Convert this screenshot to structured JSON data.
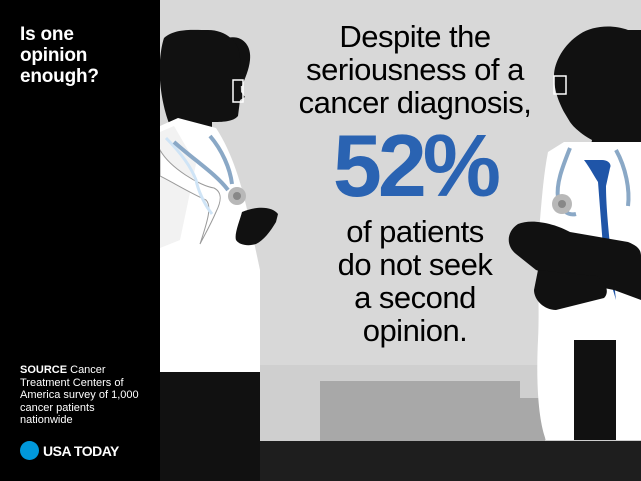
{
  "sidebar": {
    "headline": "Is one\nopinion\nenough?",
    "source_label": "SOURCE",
    "source_text": " Cancer Treatment Centers of America survey of 1,000 cancer patients nationwide",
    "brand_name": "USA TODAY",
    "brand_icon": "usa-today-dot-logo"
  },
  "main": {
    "lead": "Despite the\nseriousness of a\ncancer diagnosis,",
    "stat": "52%",
    "tail": "of patients\ndo not seek\na second\nopinion."
  },
  "colors": {
    "sidebar_bg": "#000000",
    "scene_bg": "#d8d8d8",
    "stat": "#2a63b2",
    "brand_dot": "#0098db"
  }
}
